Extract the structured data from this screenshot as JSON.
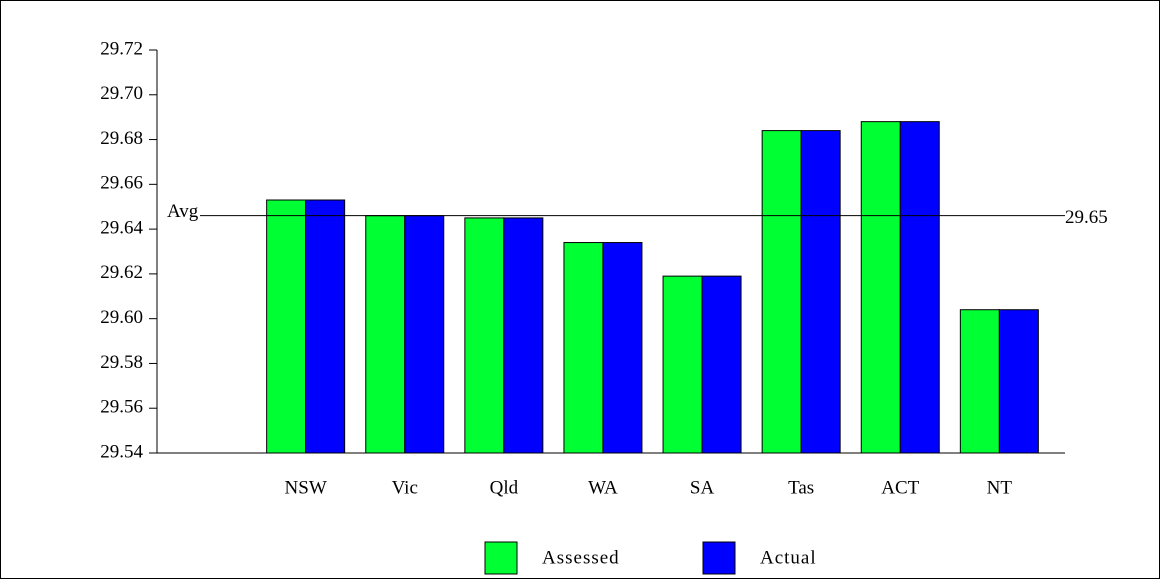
{
  "chart_data": {
    "type": "bar",
    "categories": [
      "NSW",
      "Vic",
      "Qld",
      "WA",
      "SA",
      "Tas",
      "ACT",
      "NT"
    ],
    "series": [
      {
        "name": "Assessed",
        "color": "#00ff33",
        "values": [
          29.653,
          29.646,
          29.645,
          29.634,
          29.619,
          29.684,
          29.688,
          29.604
        ]
      },
      {
        "name": "Actual",
        "color": "#0000ff",
        "values": [
          29.653,
          29.646,
          29.645,
          29.634,
          29.619,
          29.684,
          29.688,
          29.604
        ]
      }
    ],
    "ylim": [
      29.54,
      29.72
    ],
    "yticks": [
      {
        "value": 29.54,
        "label": "29.54"
      },
      {
        "value": 29.56,
        "label": "29.56"
      },
      {
        "value": 29.58,
        "label": "29.58"
      },
      {
        "value": 29.6,
        "label": "29.60"
      },
      {
        "value": 29.62,
        "label": "29.62"
      },
      {
        "value": 29.64,
        "label": "29.64"
      },
      {
        "value": 29.66,
        "label": "29.66"
      },
      {
        "value": 29.68,
        "label": "29.68"
      },
      {
        "value": 29.7,
        "label": "29.70"
      },
      {
        "value": 29.72,
        "label": "29.72"
      }
    ],
    "reference_line": {
      "label": "Avg",
      "value": 29.646,
      "value_label": "29.65"
    },
    "legend": "bottom"
  }
}
